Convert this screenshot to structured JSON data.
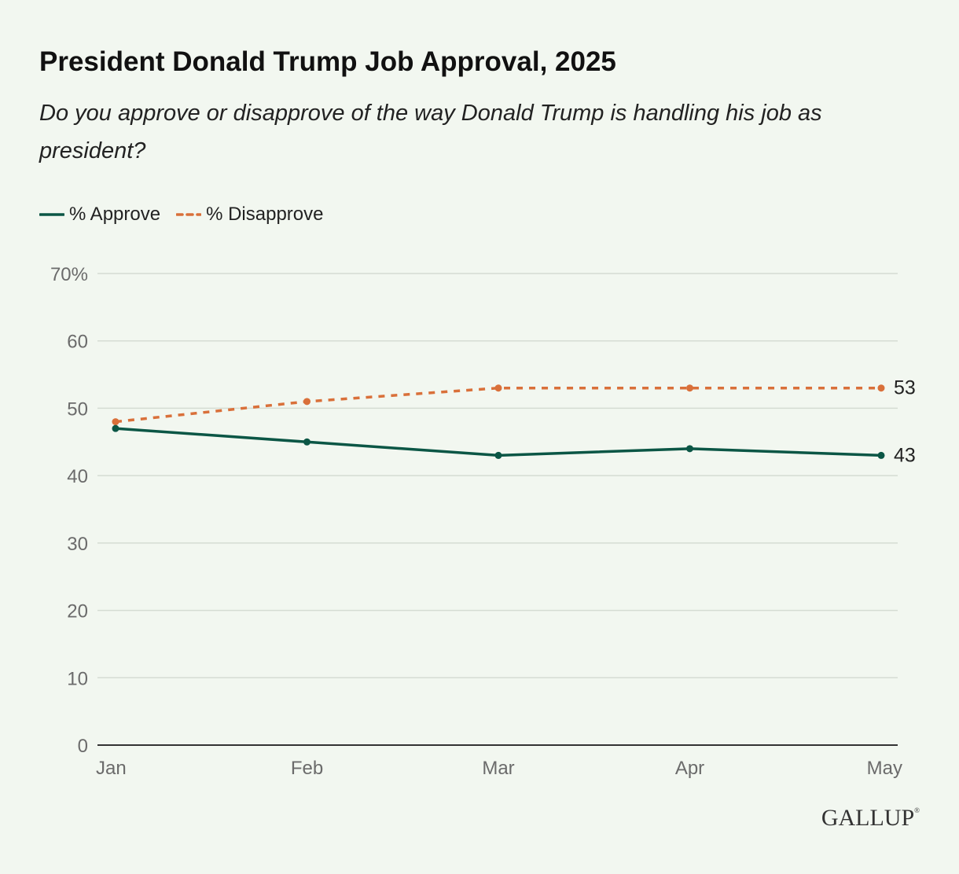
{
  "header": {
    "title": "President Donald Trump Job Approval, 2025",
    "subtitle": "Do you approve or disapprove of the way Donald Trump is handling his job as president?"
  },
  "legend": {
    "items": [
      {
        "label": "% Approve",
        "color": "#0b5645",
        "style": "solid"
      },
      {
        "label": "% Disapprove",
        "color": "#d9703a",
        "style": "dashed"
      }
    ]
  },
  "chart_data": {
    "type": "line",
    "x": [
      "Jan",
      "Feb",
      "Mar",
      "Apr",
      "May"
    ],
    "ylim": [
      0,
      70
    ],
    "yticks": [
      0,
      10,
      20,
      30,
      40,
      50,
      60,
      70
    ],
    "ytick_labels": [
      "0",
      "10",
      "20",
      "30",
      "40",
      "50",
      "60",
      "70%"
    ],
    "grid": true,
    "legend_position": "top-left",
    "series": [
      {
        "name": "% Approve",
        "values": [
          47,
          45,
          43,
          44,
          43
        ],
        "color": "#0b5645",
        "style": "solid",
        "end_label": "43"
      },
      {
        "name": "% Disapprove",
        "values": [
          48,
          51,
          53,
          53,
          53
        ],
        "color": "#d9703a",
        "style": "dashed",
        "end_label": "53"
      }
    ]
  },
  "branding": {
    "logo_text": "GALLUP",
    "logo_mark": "®"
  }
}
